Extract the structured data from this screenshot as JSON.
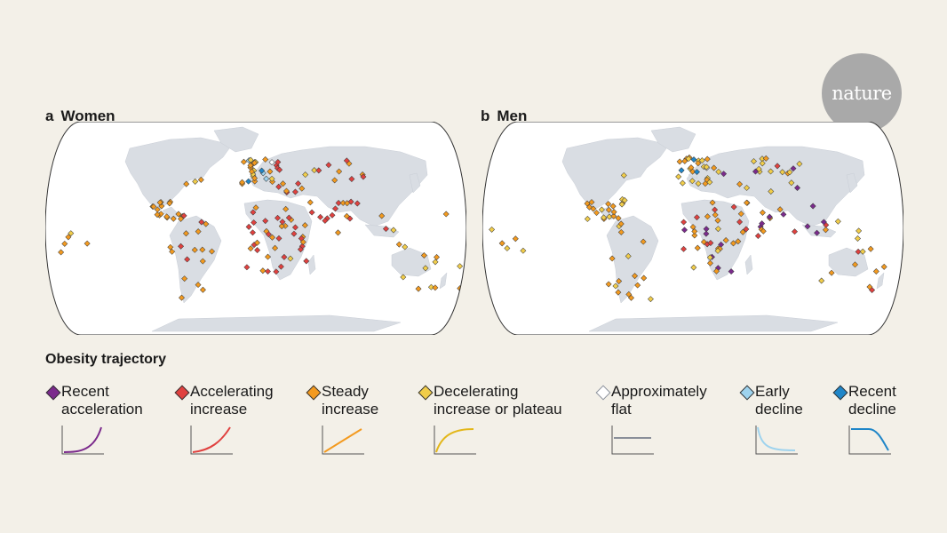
{
  "brand": {
    "logo_text": "nature"
  },
  "panels": [
    {
      "letter": "a",
      "title": "Women"
    },
    {
      "letter": "b",
      "title": "Men"
    }
  ],
  "legend": {
    "title": "Obesity trajectory",
    "items": [
      {
        "line1": "Recent",
        "line2": "acceleration",
        "color": "#7b2a8c",
        "curve": "recent-acceleration"
      },
      {
        "line1": "Accelerating",
        "line2": "increase",
        "color": "#e0413f",
        "curve": "accelerating-increase"
      },
      {
        "line1": "Steady",
        "line2": "increase",
        "color": "#f39a1f",
        "curve": "steady-increase"
      },
      {
        "line1": "Decelerating",
        "line2": "increase or plateau",
        "color": "#f1cd4a",
        "curve": "decelerating-increase"
      },
      {
        "line1": "Approximately",
        "line2": "flat",
        "color": "#ffffff",
        "curve": "flat"
      },
      {
        "line1": "Early",
        "line2": "decline",
        "color": "#9ed3ee",
        "curve": "early-decline"
      },
      {
        "line1": "Recent",
        "line2": "decline",
        "color": "#1f86c8",
        "curve": "recent-decline"
      }
    ]
  },
  "colors": {
    "background": "#f3f0e8",
    "land": "#d9dde3",
    "ocean": "#ffffff"
  }
}
